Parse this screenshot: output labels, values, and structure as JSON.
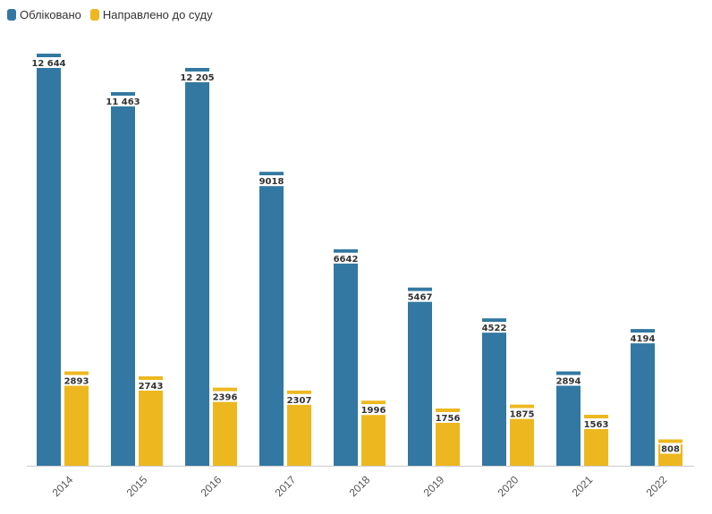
{
  "chart_data": {
    "type": "bar",
    "categories": [
      "2014",
      "2015",
      "2016",
      "2017",
      "2018",
      "2019",
      "2020",
      "2021",
      "2022"
    ],
    "series": [
      {
        "name": "Обліковано",
        "color": "#3278a2",
        "values": [
          12644,
          11463,
          12205,
          9018,
          6642,
          5467,
          4522,
          2894,
          4194
        ],
        "labels": [
          "12 644",
          "11 463",
          "12 205",
          "9018",
          "6642",
          "5467",
          "4522",
          "2894",
          "4194"
        ]
      },
      {
        "name": "Направлено до суду",
        "color": "#edb81f",
        "values": [
          2893,
          2743,
          2396,
          2307,
          1996,
          1756,
          1875,
          1563,
          808
        ],
        "labels": [
          "2893",
          "2743",
          "2396",
          "2307",
          "1996",
          "1756",
          "1875",
          "1563",
          "808"
        ]
      }
    ],
    "ylim": [
      0,
      12644
    ],
    "grid": false,
    "legend": "top-left"
  }
}
